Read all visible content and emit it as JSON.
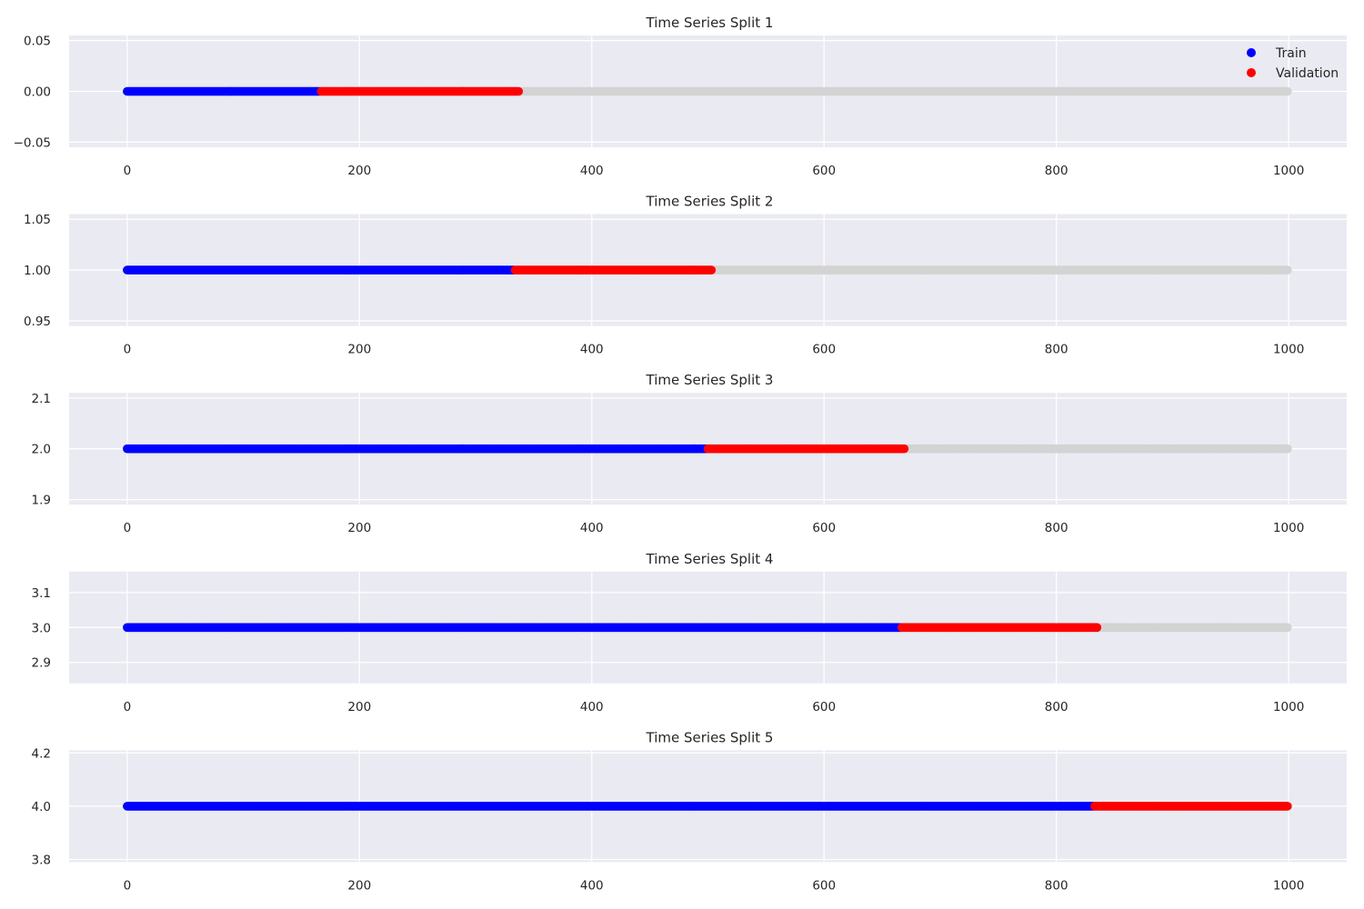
{
  "chart_data": [
    {
      "type": "scatter",
      "title": "Time Series Split 1",
      "xlim": [
        -50,
        1050
      ],
      "ylim": [
        -0.055,
        0.055
      ],
      "xticks": [
        0,
        200,
        400,
        600,
        800,
        1000
      ],
      "xtick_labels": [
        "0",
        "200",
        "400",
        "600",
        "800",
        "1000"
      ],
      "yticks": [
        -0.05,
        0.0,
        0.05
      ],
      "ytick_labels": [
        "−0.05",
        "0.00",
        "0.05"
      ],
      "y_level": 0,
      "segments": [
        {
          "series": "all samples",
          "color": "#d3d3d3",
          "x_range": [
            0,
            1000
          ]
        },
        {
          "series": "Train",
          "color": "#0000ff",
          "x_range": [
            0,
            167
          ]
        },
        {
          "series": "Validation",
          "color": "#ff0000",
          "x_range": [
            167,
            338
          ]
        }
      ],
      "grid": true,
      "legend": {
        "placement": "top-right",
        "entries": [
          {
            "label": "Train",
            "color": "#0000ff"
          },
          {
            "label": "Validation",
            "color": "#ff0000"
          }
        ]
      }
    },
    {
      "type": "scatter",
      "title": "Time Series Split 2",
      "xlim": [
        -50,
        1050
      ],
      "ylim": [
        0.945,
        1.055
      ],
      "xticks": [
        0,
        200,
        400,
        600,
        800,
        1000
      ],
      "xtick_labels": [
        "0",
        "200",
        "400",
        "600",
        "800",
        "1000"
      ],
      "yticks": [
        0.95,
        1.0,
        1.05
      ],
      "ytick_labels": [
        "0.95",
        "1.00",
        "1.05"
      ],
      "y_level": 1,
      "segments": [
        {
          "series": "all samples",
          "color": "#d3d3d3",
          "x_range": [
            0,
            1000
          ]
        },
        {
          "series": "Train",
          "color": "#0000ff",
          "x_range": [
            0,
            334
          ]
        },
        {
          "series": "Validation",
          "color": "#ff0000",
          "x_range": [
            334,
            504
          ]
        }
      ],
      "grid": true
    },
    {
      "type": "scatter",
      "title": "Time Series Split 3",
      "xlim": [
        -50,
        1050
      ],
      "ylim": [
        1.89,
        2.11
      ],
      "xticks": [
        0,
        200,
        400,
        600,
        800,
        1000
      ],
      "xtick_labels": [
        "0",
        "200",
        "400",
        "600",
        "800",
        "1000"
      ],
      "yticks": [
        1.9,
        2.0,
        2.1
      ],
      "ytick_labels": [
        "1.9",
        "2.0",
        "2.1"
      ],
      "y_level": 2,
      "segments": [
        {
          "series": "all samples",
          "color": "#d3d3d3",
          "x_range": [
            0,
            1000
          ]
        },
        {
          "series": "Train",
          "color": "#0000ff",
          "x_range": [
            0,
            500
          ]
        },
        {
          "series": "Validation",
          "color": "#ff0000",
          "x_range": [
            500,
            670
          ]
        }
      ],
      "grid": true
    },
    {
      "type": "scatter",
      "title": "Time Series Split 4",
      "xlim": [
        -50,
        1050
      ],
      "ylim": [
        2.84,
        3.16
      ],
      "xticks": [
        0,
        200,
        400,
        600,
        800,
        1000
      ],
      "xtick_labels": [
        "0",
        "200",
        "400",
        "600",
        "800",
        "1000"
      ],
      "yticks": [
        2.9,
        3.0,
        3.1
      ],
      "ytick_labels": [
        "2.9",
        "3.0",
        "3.1"
      ],
      "y_level": 3,
      "segments": [
        {
          "series": "all samples",
          "color": "#d3d3d3",
          "x_range": [
            0,
            1000
          ]
        },
        {
          "series": "Train",
          "color": "#0000ff",
          "x_range": [
            0,
            667
          ]
        },
        {
          "series": "Validation",
          "color": "#ff0000",
          "x_range": [
            667,
            836
          ]
        }
      ],
      "grid": true
    },
    {
      "type": "scatter",
      "title": "Time Series Split 5",
      "xlim": [
        -50,
        1050
      ],
      "ylim": [
        3.79,
        4.21
      ],
      "xticks": [
        0,
        200,
        400,
        600,
        800,
        1000
      ],
      "xtick_labels": [
        "0",
        "200",
        "400",
        "600",
        "800",
        "1000"
      ],
      "yticks": [
        3.8,
        4.0,
        4.2
      ],
      "ytick_labels": [
        "3.8",
        "4.0",
        "4.2"
      ],
      "y_level": 4,
      "segments": [
        {
          "series": "all samples",
          "color": "#d3d3d3",
          "x_range": [
            0,
            1000
          ]
        },
        {
          "series": "Train",
          "color": "#0000ff",
          "x_range": [
            0,
            833
          ]
        },
        {
          "series": "Validation",
          "color": "#ff0000",
          "x_range": [
            833,
            1000
          ]
        }
      ],
      "grid": true
    }
  ],
  "colors": {
    "panel_background": "#eaeaf2",
    "grid": "#ffffff",
    "text": "#262626"
  }
}
